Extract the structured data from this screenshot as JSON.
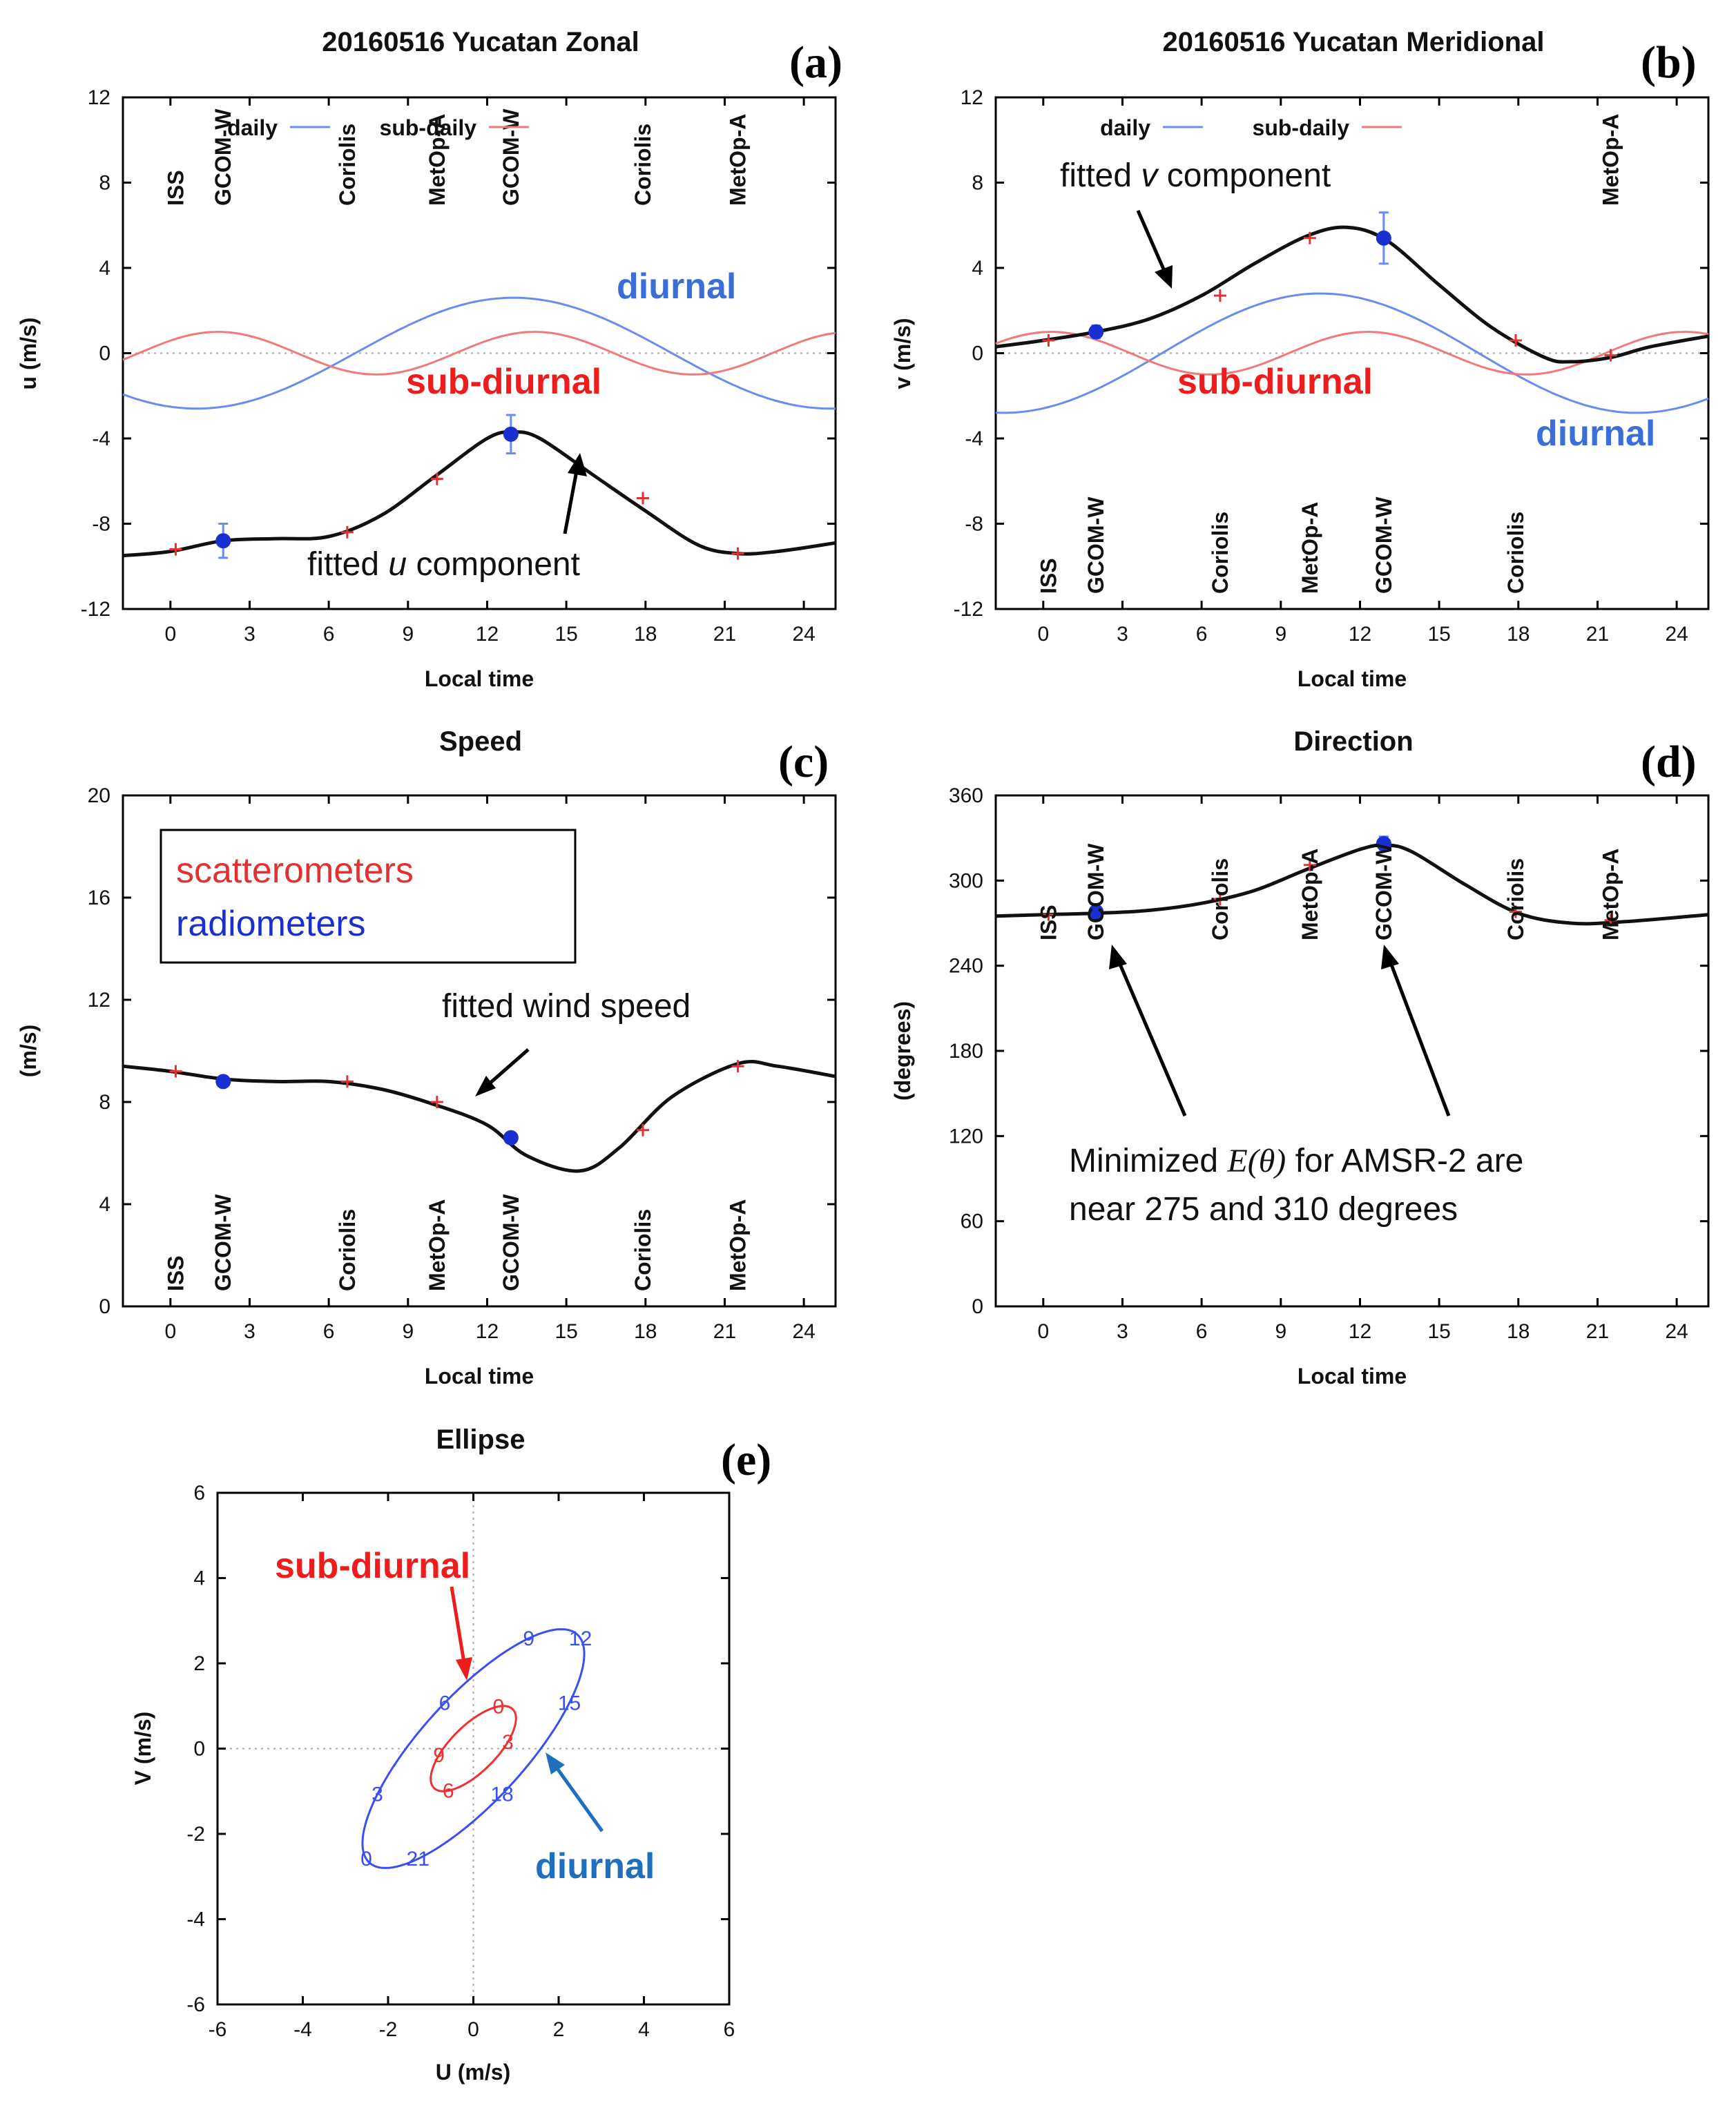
{
  "colors": {
    "daily": "#6a8cf0",
    "subdaily": "#f07a7a",
    "fit": "#111111",
    "scat": "#e33030",
    "radio": "#1a2fd0",
    "diurnal_text": "#3a6fd8",
    "subdiurnal_text": "#ee1c1c",
    "ellipse_blue": "#3a4ff0",
    "ellipse_red": "#ee3030"
  },
  "chart_data": [
    {
      "id": "a",
      "type": "line",
      "title": "20160516 Yucatan  Zonal",
      "letter": "(a)",
      "xlabel": "Local time",
      "ylabel": "u (m/s)",
      "xlim": [
        -1.8,
        25.2
      ],
      "ylim": [
        -12,
        12
      ],
      "xticks": [
        0,
        3,
        6,
        9,
        12,
        15,
        18,
        21,
        24
      ],
      "yticks": [
        -12,
        -8,
        -4,
        0,
        4,
        8,
        12
      ],
      "grid": false,
      "legend": {
        "daily": "daily",
        "subdaily": "sub-daily"
      },
      "annotations": {
        "diurnal": "diurnal",
        "subdiurnal": "sub-diurnal",
        "fitted_pre": "fitted ",
        "fitted_var": "u",
        "fitted_post": " component"
      },
      "satellites": [
        {
          "name": "ISS",
          "x": 0.2,
          "row": "top"
        },
        {
          "name": "GCOM-W",
          "x": 2.0,
          "row": "top"
        },
        {
          "name": "Coriolis",
          "x": 6.7,
          "row": "top"
        },
        {
          "name": "MetOp-A",
          "x": 10.1,
          "row": "top"
        },
        {
          "name": "GCOM-W",
          "x": 12.9,
          "row": "top"
        },
        {
          "name": "Coriolis",
          "x": 17.9,
          "row": "top"
        },
        {
          "name": "MetOp-A",
          "x": 21.5,
          "row": "top"
        }
      ],
      "series": {
        "daily": {
          "mean": 0,
          "amp": 2.6,
          "peak": 13.0
        },
        "subdaily": {
          "amp": 1.0,
          "peak": 1.8
        },
        "fit": [
          [
            -1.8,
            -9.5
          ],
          [
            0,
            -9.3
          ],
          [
            2,
            -8.8
          ],
          [
            4,
            -8.7
          ],
          [
            6,
            -8.6
          ],
          [
            8,
            -7.6
          ],
          [
            10,
            -5.8
          ],
          [
            12,
            -4.0
          ],
          [
            13,
            -3.7
          ],
          [
            14,
            -4.0
          ],
          [
            16,
            -5.7
          ],
          [
            18,
            -7.4
          ],
          [
            20,
            -9.0
          ],
          [
            21.5,
            -9.4
          ],
          [
            23,
            -9.3
          ],
          [
            25.2,
            -8.9
          ]
        ],
        "scatterometers": [
          [
            0.2,
            -9.2
          ],
          [
            6.7,
            -8.4
          ],
          [
            10.1,
            -5.9
          ],
          [
            17.9,
            -6.8
          ],
          [
            21.5,
            -9.4
          ]
        ],
        "radiometers": [
          {
            "x": 2.0,
            "y": -8.8,
            "err": 0.8
          },
          {
            "x": 12.9,
            "y": -3.8,
            "err": 0.9
          }
        ]
      }
    },
    {
      "id": "b",
      "type": "line",
      "title": "20160516 Yucatan  Meridional",
      "letter": "(b)",
      "xlabel": "Local time",
      "ylabel": "v (m/s)",
      "xlim": [
        -1.8,
        25.2
      ],
      "ylim": [
        -12,
        12
      ],
      "xticks": [
        0,
        3,
        6,
        9,
        12,
        15,
        18,
        21,
        24
      ],
      "yticks": [
        -12,
        -8,
        -4,
        0,
        4,
        8,
        12
      ],
      "grid": false,
      "legend": {
        "daily": "daily",
        "subdaily": "sub-daily"
      },
      "annotations": {
        "diurnal": "diurnal",
        "subdiurnal": "sub-diurnal",
        "fitted_pre": "fitted ",
        "fitted_var": "v",
        "fitted_post": " component"
      },
      "satellites": [
        {
          "name": "ISS",
          "x": 0.2,
          "row": "bottom"
        },
        {
          "name": "GCOM-W",
          "x": 2.0,
          "row": "bottom"
        },
        {
          "name": "Coriolis",
          "x": 6.7,
          "row": "bottom"
        },
        {
          "name": "MetOp-A",
          "x": 10.1,
          "row": "bottom"
        },
        {
          "name": "GCOM-W",
          "x": 12.9,
          "row": "bottom"
        },
        {
          "name": "Coriolis",
          "x": 17.9,
          "row": "bottom"
        },
        {
          "name": "MetOp-A",
          "x": 21.5,
          "row": "top"
        }
      ],
      "series": {
        "daily": {
          "mean": 0,
          "amp": 2.8,
          "peak": 10.5
        },
        "subdaily": {
          "amp": 1.0,
          "peak": 0.3
        },
        "fit": [
          [
            -1.8,
            0.3
          ],
          [
            0,
            0.6
          ],
          [
            2,
            1.0
          ],
          [
            4,
            1.6
          ],
          [
            6,
            2.7
          ],
          [
            8,
            4.2
          ],
          [
            10,
            5.5
          ],
          [
            11.5,
            5.9
          ],
          [
            13,
            5.3
          ],
          [
            15,
            3.2
          ],
          [
            17,
            1.2
          ],
          [
            19,
            -0.2
          ],
          [
            20,
            -0.4
          ],
          [
            21.5,
            -0.2
          ],
          [
            23,
            0.3
          ],
          [
            25.2,
            0.8
          ]
        ],
        "scatterometers": [
          [
            0.2,
            0.6
          ],
          [
            6.7,
            2.7
          ],
          [
            10.1,
            5.4
          ],
          [
            17.9,
            0.6
          ],
          [
            21.5,
            -0.1
          ]
        ],
        "radiometers": [
          {
            "x": 2.0,
            "y": 1.0,
            "err": 0.3
          },
          {
            "x": 12.9,
            "y": 5.4,
            "err": 1.2
          }
        ]
      }
    },
    {
      "id": "c",
      "type": "line",
      "title": "Speed",
      "letter": "(c)",
      "xlabel": "Local time",
      "ylabel": "(m/s)",
      "xlim": [
        -1.8,
        25.2
      ],
      "ylim": [
        0,
        20
      ],
      "xticks": [
        0,
        3,
        6,
        9,
        12,
        15,
        18,
        21,
        24
      ],
      "yticks": [
        0,
        4,
        8,
        12,
        16,
        20
      ],
      "grid": false,
      "legend": {
        "scat": "scatterometers",
        "radio": "radiometers"
      },
      "annotations": {
        "fitted": "fitted wind speed"
      },
      "satellites": [
        {
          "name": "ISS",
          "x": 0.2,
          "row": "bottom"
        },
        {
          "name": "GCOM-W",
          "x": 2.0,
          "row": "bottom"
        },
        {
          "name": "Coriolis",
          "x": 6.7,
          "row": "bottom"
        },
        {
          "name": "MetOp-A",
          "x": 10.1,
          "row": "bottom"
        },
        {
          "name": "GCOM-W",
          "x": 12.9,
          "row": "bottom"
        },
        {
          "name": "Coriolis",
          "x": 17.9,
          "row": "bottom"
        },
        {
          "name": "MetOp-A",
          "x": 21.5,
          "row": "bottom"
        }
      ],
      "series": {
        "fit": [
          [
            -1.8,
            9.4
          ],
          [
            0,
            9.2
          ],
          [
            2,
            8.9
          ],
          [
            4,
            8.8
          ],
          [
            6,
            8.8
          ],
          [
            8,
            8.5
          ],
          [
            10,
            7.9
          ],
          [
            12,
            7.1
          ],
          [
            13.5,
            5.9
          ],
          [
            15.5,
            5.3
          ],
          [
            17,
            6.2
          ],
          [
            19,
            8.2
          ],
          [
            21.5,
            9.5
          ],
          [
            23,
            9.4
          ],
          [
            25.2,
            9.0
          ]
        ],
        "scatterometers": [
          [
            0.2,
            9.2
          ],
          [
            6.7,
            8.8
          ],
          [
            10.1,
            8.0
          ],
          [
            17.9,
            6.9
          ],
          [
            21.5,
            9.4
          ]
        ],
        "radiometers": [
          {
            "x": 2.0,
            "y": 8.8,
            "err": 0.15
          },
          {
            "x": 12.9,
            "y": 6.6,
            "err": 0.15
          }
        ]
      }
    },
    {
      "id": "d",
      "type": "line",
      "title": "Direction",
      "letter": "(d)",
      "xlabel": "Local time",
      "ylabel": "(degrees)",
      "xlim": [
        -1.8,
        25.2
      ],
      "ylim": [
        0,
        360
      ],
      "xticks": [
        0,
        3,
        6,
        9,
        12,
        15,
        18,
        21,
        24
      ],
      "yticks": [
        0,
        60,
        120,
        180,
        240,
        300,
        360
      ],
      "grid": false,
      "annotations": {
        "line1_pre": "Minimized ",
        "line1_math": "E(θ)",
        "line1_post": " for AMSR-2 are",
        "line2": "near 275 and 310 degrees"
      },
      "satellites": [
        {
          "name": "ISS",
          "x": 0.2,
          "row": "top"
        },
        {
          "name": "GCOM-W",
          "x": 2.0,
          "row": "top"
        },
        {
          "name": "Coriolis",
          "x": 6.7,
          "row": "top"
        },
        {
          "name": "MetOp-A",
          "x": 10.1,
          "row": "top"
        },
        {
          "name": "GCOM-W",
          "x": 12.9,
          "row": "top"
        },
        {
          "name": "Coriolis",
          "x": 17.9,
          "row": "top"
        },
        {
          "name": "MetOp-A",
          "x": 21.5,
          "row": "top"
        }
      ],
      "series": {
        "fit": [
          [
            -1.8,
            275
          ],
          [
            0,
            276
          ],
          [
            2,
            277
          ],
          [
            4,
            279
          ],
          [
            6,
            284
          ],
          [
            8,
            293
          ],
          [
            10,
            308
          ],
          [
            12,
            322
          ],
          [
            13,
            325
          ],
          [
            14,
            320
          ],
          [
            16,
            297
          ],
          [
            18,
            277
          ],
          [
            20,
            270
          ],
          [
            22,
            271
          ],
          [
            25.2,
            276
          ]
        ],
        "scatterometers": [
          [
            0.2,
            276
          ],
          [
            6.7,
            287
          ],
          [
            10.1,
            311
          ],
          [
            17.9,
            278
          ],
          [
            21.5,
            272
          ]
        ],
        "radiometers": [
          {
            "x": 2.0,
            "y": 278,
            "err": 2
          },
          {
            "x": 12.9,
            "y": 326,
            "err": 5
          }
        ]
      }
    },
    {
      "id": "e",
      "type": "line",
      "title": "Ellipse",
      "letter": "(e)",
      "xlabel": "U (m/s)",
      "ylabel": "V (m/s)",
      "xlim": [
        -6,
        6
      ],
      "ylim": [
        -6,
        6
      ],
      "xticks": [
        -6,
        -4,
        -2,
        0,
        2,
        4,
        6
      ],
      "yticks": [
        -6,
        -4,
        -2,
        0,
        2,
        4,
        6
      ],
      "grid": false,
      "annotations": {
        "subdiurnal": "sub-diurnal",
        "diurnal": "diurnal"
      },
      "series": {
        "diurnal": {
          "ua": 2.6,
          "va": 2.8,
          "up": 13.0,
          "vp": 10.5,
          "labels": [
            {
              "t": 0,
              "text": "0"
            },
            {
              "t": 3,
              "text": "3"
            },
            {
              "t": 6,
              "text": "6"
            },
            {
              "t": 9,
              "text": "9"
            },
            {
              "t": 12,
              "text": "12"
            },
            {
              "t": 15,
              "text": "15"
            },
            {
              "t": 18,
              "text": "18"
            },
            {
              "t": 21,
              "text": "21"
            }
          ]
        },
        "subdiurnal": {
          "ua": 1.0,
          "va": 1.0,
          "up": 1.8,
          "vp": 0.3,
          "labels": [
            {
              "t": 0,
              "text": "0"
            },
            {
              "t": 3,
              "text": "3"
            },
            {
              "t": 6,
              "text": "6"
            },
            {
              "t": 9,
              "text": "9"
            }
          ]
        }
      }
    }
  ]
}
